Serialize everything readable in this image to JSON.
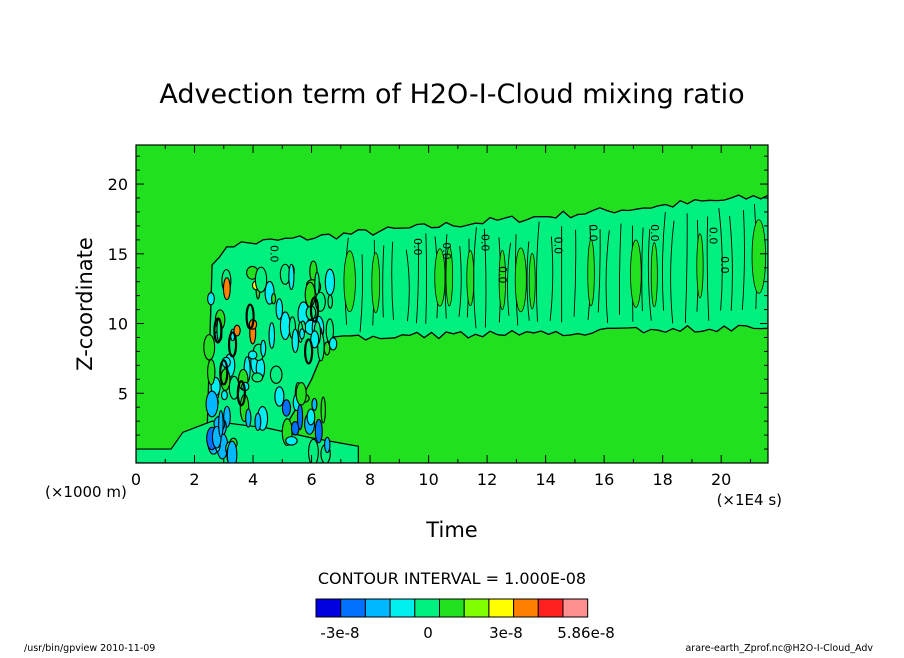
{
  "chart_data": {
    "type": "heatmap",
    "title": "Advection term of H2O-I-Cloud mixing ratio",
    "xlabel": "Time",
    "ylabel": "Z-coordinate",
    "x_unit": "(×1E4 s)",
    "y_unit": "(×1000 m)",
    "xlim": [
      0,
      21.6
    ],
    "ylim": [
      0,
      22.8
    ],
    "x_ticks": [
      "0",
      "2",
      "4",
      "6",
      "8",
      "10",
      "12",
      "14",
      "16",
      "18",
      "20"
    ],
    "y_ticks": [
      "5",
      "10",
      "15",
      "20"
    ],
    "contour_interval": "CONTOUR INTERVAL = 1.000E-08",
    "contour_label": "0.0",
    "colorbar": {
      "colors": [
        "#0000e0",
        "#0070ff",
        "#00b8ff",
        "#00f0f0",
        "#00f080",
        "#20e020",
        "#80ff00",
        "#ffff00",
        "#ff8000",
        "#ff2020",
        "#ff9090"
      ],
      "labels": [
        "-3e-8",
        "0",
        "3e-8",
        "5.86e-8"
      ]
    }
  },
  "footer": {
    "left": "/usr/bin/gpview   2010-11-09",
    "right": "arare-earth_Zprof.nc@H2O-I-Cloud_Adv"
  }
}
